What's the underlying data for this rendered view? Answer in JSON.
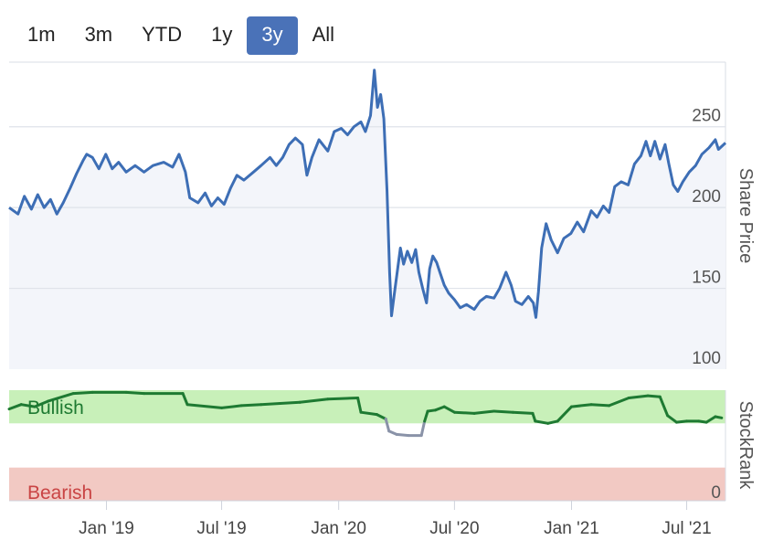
{
  "range_tabs": [
    {
      "label": "1m",
      "active": false
    },
    {
      "label": "3m",
      "active": false
    },
    {
      "label": "YTD",
      "active": false
    },
    {
      "label": "1y",
      "active": false
    },
    {
      "label": "3y",
      "active": true
    },
    {
      "label": "All",
      "active": false
    }
  ],
  "colors": {
    "price_line": "#3d6eb5",
    "price_fill": "#f3f5fa",
    "bullish_band": "#c8f0b9",
    "bearish_band": "#f2c9c3",
    "rank_line_bullish": "#1e7a32",
    "rank_line_neutral": "#8a93a8",
    "active_tab": "#4a72b8"
  },
  "chart_data": [
    {
      "type": "line",
      "ylabel": "Share Price",
      "ylim": [
        100,
        290
      ],
      "yticks": [
        100,
        150,
        200,
        250
      ],
      "xlim": [
        "2018-08-01",
        "2021-08-31"
      ],
      "xticks": [
        "2019-01-01",
        "2019-07-01",
        "2020-01-01",
        "2020-07-01",
        "2021-01-01",
        "2021-07-01"
      ],
      "xtick_labels": [
        "Jan '19",
        "Jul '19",
        "Jan '20",
        "Jul '20",
        "Jan '21",
        "Jul '21"
      ],
      "grid": true,
      "series": [
        {
          "points": [
            [
              "2018-08-01",
              200
            ],
            [
              "2018-08-15",
              196
            ],
            [
              "2018-08-25",
              207
            ],
            [
              "2018-09-05",
              199
            ],
            [
              "2018-09-15",
              208
            ],
            [
              "2018-09-25",
              200
            ],
            [
              "2018-10-05",
              205
            ],
            [
              "2018-10-15",
              196
            ],
            [
              "2018-10-25",
              203
            ],
            [
              "2018-11-05",
              212
            ],
            [
              "2018-11-15",
              221
            ],
            [
              "2018-11-25",
              229
            ],
            [
              "2018-12-01",
              233
            ],
            [
              "2018-12-10",
              231
            ],
            [
              "2018-12-20",
              224
            ],
            [
              "2018-12-31",
              233
            ],
            [
              "2019-01-10",
              224
            ],
            [
              "2019-01-20",
              228
            ],
            [
              "2019-02-01",
              222
            ],
            [
              "2019-02-15",
              226
            ],
            [
              "2019-03-01",
              222
            ],
            [
              "2019-03-15",
              226
            ],
            [
              "2019-04-01",
              228
            ],
            [
              "2019-04-15",
              225
            ],
            [
              "2019-04-25",
              233
            ],
            [
              "2019-05-05",
              222
            ],
            [
              "2019-05-12",
              206
            ],
            [
              "2019-05-25",
              203
            ],
            [
              "2019-06-05",
              209
            ],
            [
              "2019-06-15",
              201
            ],
            [
              "2019-06-25",
              206
            ],
            [
              "2019-07-05",
              202
            ],
            [
              "2019-07-15",
              212
            ],
            [
              "2019-07-25",
              220
            ],
            [
              "2019-08-05",
              217
            ],
            [
              "2019-08-20",
              222
            ],
            [
              "2019-09-01",
              226
            ],
            [
              "2019-09-15",
              231
            ],
            [
              "2019-09-25",
              226
            ],
            [
              "2019-10-05",
              231
            ],
            [
              "2019-10-15",
              239
            ],
            [
              "2019-10-25",
              243
            ],
            [
              "2019-11-05",
              239
            ],
            [
              "2019-11-12",
              220
            ],
            [
              "2019-11-20",
              231
            ],
            [
              "2019-12-01",
              242
            ],
            [
              "2019-12-15",
              235
            ],
            [
              "2019-12-25",
              247
            ],
            [
              "2020-01-05",
              249
            ],
            [
              "2020-01-15",
              245
            ],
            [
              "2020-01-25",
              250
            ],
            [
              "2020-02-05",
              253
            ],
            [
              "2020-02-12",
              247
            ],
            [
              "2020-02-20",
              257
            ],
            [
              "2020-02-26",
              285
            ],
            [
              "2020-03-02",
              262
            ],
            [
              "2020-03-07",
              270
            ],
            [
              "2020-03-12",
              255
            ],
            [
              "2020-03-17",
              210
            ],
            [
              "2020-03-21",
              160
            ],
            [
              "2020-03-24",
              133
            ],
            [
              "2020-03-28",
              145
            ],
            [
              "2020-04-02",
              160
            ],
            [
              "2020-04-07",
              175
            ],
            [
              "2020-04-12",
              165
            ],
            [
              "2020-04-18",
              173
            ],
            [
              "2020-04-25",
              166
            ],
            [
              "2020-05-01",
              174
            ],
            [
              "2020-05-06",
              160
            ],
            [
              "2020-05-12",
              150
            ],
            [
              "2020-05-18",
              141
            ],
            [
              "2020-05-23",
              162
            ],
            [
              "2020-05-28",
              170
            ],
            [
              "2020-06-03",
              166
            ],
            [
              "2020-06-08",
              160
            ],
            [
              "2020-06-15",
              152
            ],
            [
              "2020-06-22",
              147
            ],
            [
              "2020-07-01",
              143
            ],
            [
              "2020-07-10",
              138
            ],
            [
              "2020-07-20",
              140
            ],
            [
              "2020-08-01",
              137
            ],
            [
              "2020-08-10",
              142
            ],
            [
              "2020-08-20",
              145
            ],
            [
              "2020-09-01",
              144
            ],
            [
              "2020-09-10",
              150
            ],
            [
              "2020-09-20",
              160
            ],
            [
              "2020-09-28",
              152
            ],
            [
              "2020-10-05",
              142
            ],
            [
              "2020-10-15",
              140
            ],
            [
              "2020-10-25",
              145
            ],
            [
              "2020-11-02",
              141
            ],
            [
              "2020-11-06",
              132
            ],
            [
              "2020-11-10",
              148
            ],
            [
              "2020-11-15",
              175
            ],
            [
              "2020-11-22",
              190
            ],
            [
              "2020-11-30",
              180
            ],
            [
              "2020-12-10",
              172
            ],
            [
              "2020-12-20",
              181
            ],
            [
              "2020-12-31",
              184
            ],
            [
              "2021-01-10",
              191
            ],
            [
              "2021-01-20",
              185
            ],
            [
              "2021-02-01",
              198
            ],
            [
              "2021-02-10",
              194
            ],
            [
              "2021-02-20",
              201
            ],
            [
              "2021-03-01",
              197
            ],
            [
              "2021-03-10",
              213
            ],
            [
              "2021-03-20",
              216
            ],
            [
              "2021-03-31",
              214
            ],
            [
              "2021-04-10",
              227
            ],
            [
              "2021-04-20",
              232
            ],
            [
              "2021-04-28",
              241
            ],
            [
              "2021-05-05",
              232
            ],
            [
              "2021-05-12",
              241
            ],
            [
              "2021-05-20",
              230
            ],
            [
              "2021-05-28",
              239
            ],
            [
              "2021-06-03",
              227
            ],
            [
              "2021-06-10",
              214
            ],
            [
              "2021-06-17",
              210
            ],
            [
              "2021-06-25",
              216
            ],
            [
              "2021-07-05",
              222
            ],
            [
              "2021-07-15",
              226
            ],
            [
              "2021-07-25",
              233
            ],
            [
              "2021-08-05",
              237
            ],
            [
              "2021-08-15",
              242
            ],
            [
              "2021-08-20",
              236
            ],
            [
              "2021-08-31",
              240
            ]
          ]
        }
      ]
    },
    {
      "type": "line",
      "ylabel": "StockRank",
      "ylim": [
        0,
        100
      ],
      "yticks": [
        0
      ],
      "bands": [
        {
          "label": "Bullish",
          "from": 70,
          "to": 100
        },
        {
          "label": "Bearish",
          "from": 0,
          "to": 30
        }
      ],
      "series": [
        {
          "points": [
            [
              "2018-08-01",
              83
            ],
            [
              "2018-08-20",
              87
            ],
            [
              "2018-09-10",
              85
            ],
            [
              "2018-10-01",
              90
            ],
            [
              "2018-11-10",
              97
            ],
            [
              "2018-12-10",
              98
            ],
            [
              "2019-02-01",
              98
            ],
            [
              "2019-03-01",
              97
            ],
            [
              "2019-05-01",
              97
            ],
            [
              "2019-05-08",
              87
            ],
            [
              "2019-07-01",
              84
            ],
            [
              "2019-08-01",
              86
            ],
            [
              "2019-09-01",
              87
            ],
            [
              "2019-10-01",
              88
            ],
            [
              "2019-11-01",
              89
            ],
            [
              "2019-12-15",
              92
            ],
            [
              "2020-01-31",
              93
            ],
            [
              "2020-02-05",
              80
            ],
            [
              "2020-03-01",
              78
            ],
            [
              "2020-03-15",
              74
            ],
            [
              "2020-03-20",
              63
            ],
            [
              "2020-04-01",
              60
            ],
            [
              "2020-04-20",
              59
            ],
            [
              "2020-05-10",
              59
            ],
            [
              "2020-05-15",
              72
            ],
            [
              "2020-05-20",
              81
            ],
            [
              "2020-06-01",
              82
            ],
            [
              "2020-06-15",
              85
            ],
            [
              "2020-07-01",
              80
            ],
            [
              "2020-08-01",
              79
            ],
            [
              "2020-09-01",
              81
            ],
            [
              "2020-10-01",
              80
            ],
            [
              "2020-11-01",
              79
            ],
            [
              "2020-11-05",
              72
            ],
            [
              "2020-11-25",
              70
            ],
            [
              "2020-12-10",
              72
            ],
            [
              "2021-01-01",
              85
            ],
            [
              "2021-02-01",
              87
            ],
            [
              "2021-03-01",
              86
            ],
            [
              "2021-04-01",
              93
            ],
            [
              "2021-05-01",
              95
            ],
            [
              "2021-05-20",
              94
            ],
            [
              "2021-06-01",
              77
            ],
            [
              "2021-06-15",
              71
            ],
            [
              "2021-07-01",
              72
            ],
            [
              "2021-07-20",
              72
            ],
            [
              "2021-08-01",
              71
            ],
            [
              "2021-08-15",
              76
            ],
            [
              "2021-08-25",
              75
            ]
          ]
        }
      ]
    }
  ]
}
